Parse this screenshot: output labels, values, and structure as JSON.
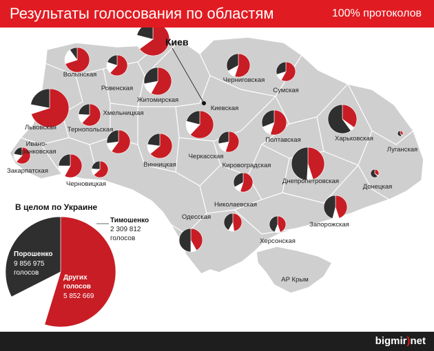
{
  "header": {
    "title": "Результаты голосования по областям",
    "protocols": "100% протоколов"
  },
  "colors": {
    "poroshenko": "#c81d25",
    "tymoshenko": "#ffffff",
    "others": "#2f2f2f",
    "land": "#cfcfcf",
    "header": "#e11b22"
  },
  "regions": [
    {
      "id": "kiev-city",
      "label": "Киев",
      "shares": [
        0.65,
        0.14,
        0.21
      ]
    },
    {
      "id": "volyn",
      "label": "Волынская",
      "shares": [
        0.7,
        0.2,
        0.1
      ]
    },
    {
      "id": "rivne",
      "label": "Ровенская",
      "shares": [
        0.62,
        0.18,
        0.2
      ]
    },
    {
      "id": "zhytomyr",
      "label": "Житомирская",
      "shares": [
        0.58,
        0.14,
        0.28
      ]
    },
    {
      "id": "chernihiv",
      "label": "Черниговская",
      "shares": [
        0.55,
        0.12,
        0.33
      ]
    },
    {
      "id": "sumy",
      "label": "Сумская",
      "shares": [
        0.58,
        0.12,
        0.3
      ]
    },
    {
      "id": "kiev-oblast",
      "label": "Киевская",
      "shares": [
        0.62,
        0.17,
        0.21
      ]
    },
    {
      "id": "lviv",
      "label": "Львовская",
      "shares": [
        0.7,
        0.08,
        0.22
      ]
    },
    {
      "id": "ternopil",
      "label": "Тернопольская",
      "shares": [
        0.62,
        0.14,
        0.24
      ]
    },
    {
      "id": "khmelnytskyi",
      "label": "Хмельницкая",
      "shares": [
        0.6,
        0.13,
        0.27
      ]
    },
    {
      "id": "vinnytsia",
      "label": "Винницкая",
      "shares": [
        0.64,
        0.13,
        0.23
      ]
    },
    {
      "id": "ivano-frankivsk",
      "label": "Ивано-Франковская",
      "shares": [
        0.58,
        0.17,
        0.25
      ]
    },
    {
      "id": "zakarpattia",
      "label": "Закарпатская",
      "shares": [
        0.62,
        0.16,
        0.22
      ]
    },
    {
      "id": "chernivtsi",
      "label": "Черновицкая",
      "shares": [
        0.63,
        0.13,
        0.24
      ]
    },
    {
      "id": "cherkasy",
      "label": "Черкасская",
      "shares": [
        0.55,
        0.17,
        0.28
      ]
    },
    {
      "id": "kirovohrad",
      "label": "Кировоградская",
      "shares": [
        0.55,
        0.12,
        0.33
      ]
    },
    {
      "id": "poltava",
      "label": "Полтавская",
      "shares": [
        0.55,
        0.14,
        0.31
      ]
    },
    {
      "id": "kharkiv",
      "label": "Харьковская",
      "shares": [
        0.35,
        0.05,
        0.6
      ]
    },
    {
      "id": "luhansk",
      "label": "Луганская",
      "shares": [
        0.36,
        0.04,
        0.6
      ]
    },
    {
      "id": "donetsk",
      "label": "Донецкая",
      "shares": [
        0.34,
        0.03,
        0.63
      ]
    },
    {
      "id": "dnipro",
      "label": "Днепропетровская",
      "shares": [
        0.45,
        0.06,
        0.49
      ]
    },
    {
      "id": "odesa",
      "label": "Одесская",
      "shares": [
        0.42,
        0.08,
        0.5
      ]
    },
    {
      "id": "mykolaiv",
      "label": "Николаевская",
      "shares": [
        0.48,
        0.1,
        0.42
      ]
    },
    {
      "id": "kherson",
      "label": "Херсонская",
      "shares": [
        0.45,
        0.11,
        0.44
      ]
    },
    {
      "id": "zaporizhzhia",
      "label": "Запорожская",
      "shares": [
        0.45,
        0.09,
        0.46
      ]
    },
    {
      "id": "crimea",
      "label": "АР Крым",
      "shares": null
    }
  ],
  "summary": {
    "title": "В целом по Украине",
    "poroshenko": {
      "name": "Порошенко",
      "votes": "9 856 975",
      "unit": "голосов",
      "value": 9856975
    },
    "tymoshenko": {
      "name": "Тимошенко",
      "votes": "2 309 812",
      "unit": "голосов",
      "value": 2309812
    },
    "others": {
      "name1": "Других",
      "name2": "голосов",
      "votes": "5 852 669",
      "value": 5852669
    }
  },
  "footer": {
    "brand_a": "bigmir",
    "brand_sep": ")",
    "brand_b": "net"
  }
}
